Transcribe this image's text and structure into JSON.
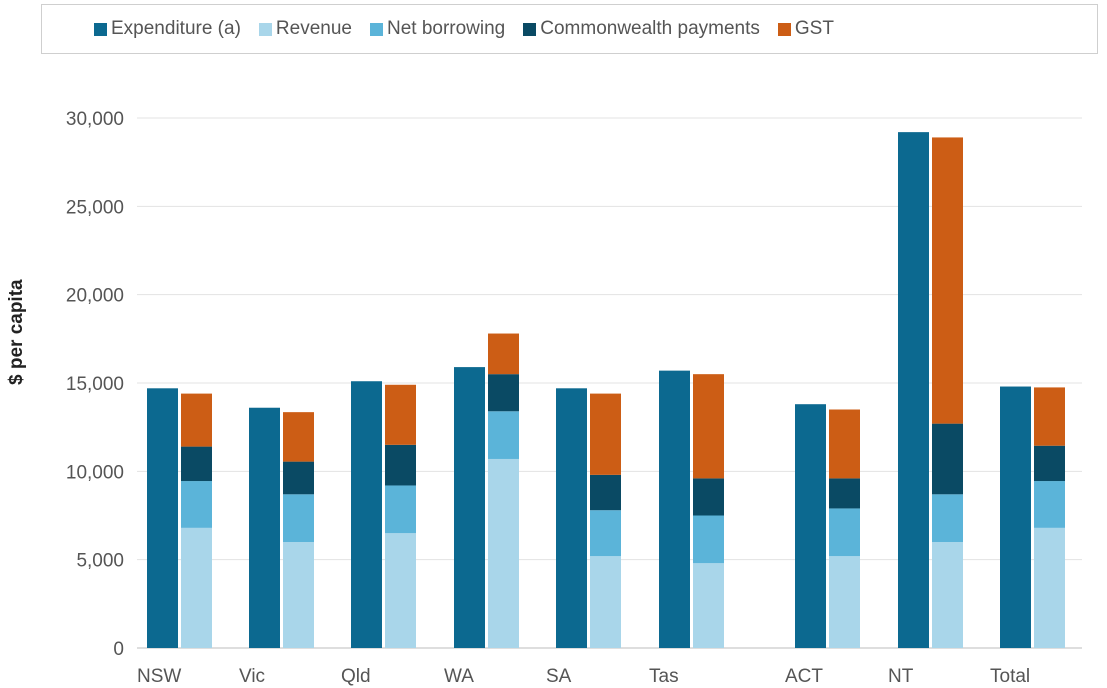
{
  "legend": [
    {
      "label": "Expenditure (a)",
      "color": "#0c6990"
    },
    {
      "label": "Revenue",
      "color": "#a9d6ea"
    },
    {
      "label": "Net borrowing",
      "color": "#5bb4d9"
    },
    {
      "label": "Commonwealth payments",
      "color": "#0a4a64"
    },
    {
      "label": "GST",
      "color": "#cc5d15"
    }
  ],
  "chart_data": {
    "type": "bar",
    "ylabel": "$ per capita",
    "ylim": [
      0,
      30000
    ],
    "yticks": [
      0,
      5000,
      10000,
      15000,
      20000,
      25000,
      30000
    ],
    "ytick_labels": [
      "0",
      "5,000",
      "10,000",
      "15,000",
      "20,000",
      "25,000",
      "30,000"
    ],
    "categories": [
      "NSW",
      "Vic",
      "Qld",
      "WA",
      "SA",
      "Tas",
      "ACT",
      "NT",
      "Total"
    ],
    "series": [
      {
        "name": "Expenditure (a)",
        "stack": "expenditure",
        "color": "#0c6990",
        "values": [
          14700,
          13600,
          15100,
          15900,
          14700,
          15700,
          13800,
          29200,
          14800
        ]
      },
      {
        "name": "Revenue",
        "stack": "funding",
        "color": "#a9d6ea",
        "values": [
          6800,
          6000,
          6500,
          10700,
          5200,
          4800,
          5200,
          6000,
          6800
        ]
      },
      {
        "name": "Net borrowing",
        "stack": "funding",
        "color": "#5bb4d9",
        "values": [
          2650,
          2700,
          2700,
          2700,
          2600,
          2700,
          2700,
          2700,
          2650
        ]
      },
      {
        "name": "Commonwealth payments",
        "stack": "funding",
        "color": "#0a4a64",
        "values": [
          1950,
          1850,
          2300,
          2100,
          2000,
          2100,
          1700,
          4000,
          2000
        ]
      },
      {
        "name": "GST",
        "stack": "funding",
        "color": "#cc5d15",
        "values": [
          3000,
          2800,
          3400,
          2300,
          4600,
          5900,
          3900,
          16200,
          3300
        ]
      }
    ],
    "grid": true,
    "legend_position": "top"
  }
}
